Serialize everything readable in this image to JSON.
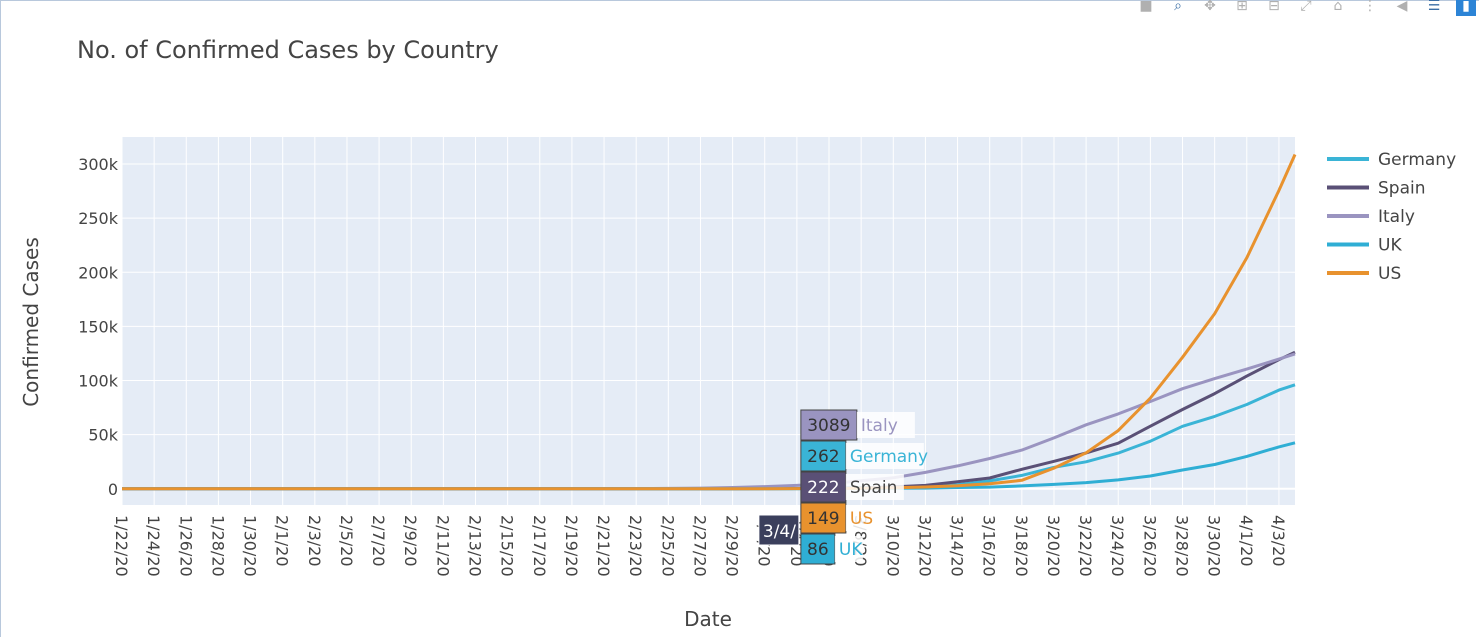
{
  "toolbar": {
    "icons": [
      "camera-icon",
      "zoom-icon",
      "pan-icon",
      "zoom-in-icon",
      "zoom-out-icon",
      "autoscale-icon",
      "home-icon",
      "spike-lines-icon",
      "hover-closest-icon",
      "hover-compare-icon",
      "plotly-logo-icon"
    ]
  },
  "colors": {
    "Germany": "#3ab4d6",
    "Spain": "#5a5076",
    "Italy": "#9a94c0",
    "UK": "#2faed4",
    "US": "#e8922e",
    "hover_date_bg": "#3b3f5c",
    "plot_bg": "#e5ecf6"
  },
  "chart_data": {
    "type": "line",
    "title": "No. of Confirmed Cases by Country",
    "xlabel": "Date",
    "ylabel": "Confirmed Cases",
    "ylim": [
      -15000,
      325000
    ],
    "yticks": [
      0,
      50000,
      100000,
      150000,
      200000,
      250000,
      300000
    ],
    "ytick_labels": [
      "0",
      "50k",
      "100k",
      "150k",
      "200k",
      "250k",
      "300k"
    ],
    "xtick_labels": [
      "1/22/20",
      "1/24/20",
      "1/26/20",
      "1/28/20",
      "1/30/20",
      "2/1/20",
      "2/3/20",
      "2/5/20",
      "2/7/20",
      "2/9/20",
      "2/11/20",
      "2/13/20",
      "2/15/20",
      "2/17/20",
      "2/19/20",
      "2/21/20",
      "2/23/20",
      "2/25/20",
      "2/27/20",
      "2/29/20",
      "3/2/20",
      "3/4/20",
      "3/6/20",
      "3/8/20",
      "3/10/20",
      "3/12/20",
      "3/14/20",
      "3/16/20",
      "3/18/20",
      "3/20/20",
      "3/22/20",
      "3/24/20",
      "3/26/20",
      "3/28/20",
      "3/30/20",
      "4/1/20",
      "4/3/20"
    ],
    "x": [
      "1/22/20",
      "1/24/20",
      "1/26/20",
      "1/28/20",
      "1/30/20",
      "2/1/20",
      "2/3/20",
      "2/5/20",
      "2/7/20",
      "2/9/20",
      "2/11/20",
      "2/13/20",
      "2/15/20",
      "2/17/20",
      "2/19/20",
      "2/21/20",
      "2/23/20",
      "2/25/20",
      "2/27/20",
      "2/29/20",
      "3/2/20",
      "3/4/20",
      "3/6/20",
      "3/8/20",
      "3/10/20",
      "3/12/20",
      "3/14/20",
      "3/16/20",
      "3/18/20",
      "3/20/20",
      "3/22/20",
      "3/24/20",
      "3/26/20",
      "3/28/20",
      "3/30/20",
      "4/1/20",
      "4/3/20",
      "4/4/20"
    ],
    "legend_position": "top-right",
    "grid": true,
    "series": [
      {
        "name": "Germany",
        "values": [
          0,
          0,
          0,
          0,
          0,
          5,
          12,
          12,
          13,
          14,
          16,
          16,
          16,
          16,
          16,
          16,
          16,
          16,
          46,
          79,
          159,
          262,
          670,
          1040,
          1457,
          2078,
          3675,
          7272,
          12327,
          19848,
          24873,
          32986,
          43938,
          57695,
          66885,
          77872,
          91159,
          96092
        ]
      },
      {
        "name": "Spain",
        "values": [
          0,
          0,
          0,
          0,
          0,
          1,
          1,
          1,
          1,
          2,
          2,
          2,
          2,
          2,
          2,
          2,
          2,
          6,
          15,
          45,
          120,
          222,
          400,
          673,
          1695,
          3146,
          6391,
          9942,
          17963,
          25374,
          33089,
          42058,
          57786,
          73235,
          87956,
          104118,
          119199,
          126168
        ]
      },
      {
        "name": "Italy",
        "values": [
          0,
          0,
          0,
          0,
          0,
          2,
          2,
          2,
          3,
          3,
          3,
          3,
          3,
          3,
          3,
          20,
          155,
          322,
          655,
          1128,
          2036,
          3089,
          4636,
          7375,
          10149,
          15113,
          21157,
          27980,
          35713,
          47021,
          59138,
          69176,
          80589,
          92472,
          101739,
          110574,
          119827,
          124632
        ]
      },
      {
        "name": "UK",
        "values": [
          0,
          0,
          0,
          0,
          0,
          2,
          2,
          2,
          3,
          3,
          8,
          9,
          9,
          9,
          9,
          9,
          9,
          13,
          15,
          23,
          40,
          86,
          164,
          273,
          384,
          590,
          1140,
          1551,
          2642,
          4014,
          5741,
          8164,
          11812,
          17312,
          22453,
          29865,
          38689,
          42477
        ]
      },
      {
        "name": "US",
        "values": [
          1,
          2,
          5,
          5,
          6,
          8,
          11,
          12,
          12,
          12,
          13,
          14,
          15,
          15,
          15,
          15,
          15,
          15,
          16,
          30,
          62,
          149,
          262,
          519,
          959,
          1663,
          2727,
          4632,
          7786,
          19100,
          33272,
          53740,
          83836,
          121478,
          161807,
          213372,
          275586,
          308850
        ]
      }
    ],
    "hover": {
      "date_label": "3/4/",
      "entries": [
        {
          "name": "Italy",
          "value": "3089"
        },
        {
          "name": "Germany",
          "value": "262"
        },
        {
          "name": "Spain",
          "value": "222"
        },
        {
          "name": "US",
          "value": "149"
        },
        {
          "name": "UK",
          "value": "86"
        }
      ]
    }
  }
}
